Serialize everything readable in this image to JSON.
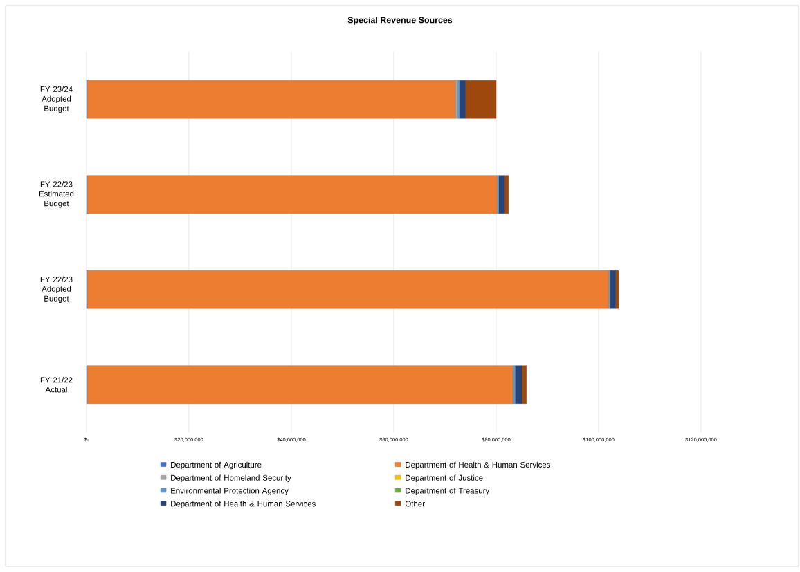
{
  "chart_data": {
    "type": "bar",
    "orientation": "horizontal",
    "stacked": true,
    "title": "Special Revenue Sources",
    "categories": [
      "FY 23/24 Adopted Budget",
      "FY 22/23 Estimated Budget",
      "FY 22/23 Adopted Budget",
      "FY 21/22 Actual"
    ],
    "series": [
      {
        "name": "Department of Agriculture",
        "color": "#4472c4",
        "values": [
          100000,
          100000,
          100000,
          100000
        ]
      },
      {
        "name": "Department of Health & Human Services",
        "color": "#ed7d31",
        "values": [
          71900000,
          80000000,
          101800000,
          83100000
        ]
      },
      {
        "name": "Department of Homeland Security",
        "color": "#a5a5a5",
        "values": [
          500000,
          200000,
          200000,
          200000
        ]
      },
      {
        "name": "Department of Justice",
        "color": "#ffc000",
        "values": [
          0,
          0,
          0,
          0
        ]
      },
      {
        "name": "Environmental Protection Agency",
        "color": "#5b9bd5",
        "values": [
          300000,
          200000,
          200000,
          300000
        ]
      },
      {
        "name": "Department of Treasury",
        "color": "#70ad47",
        "values": [
          0,
          0,
          0,
          0
        ]
      },
      {
        "name": "Department of Health & Human Services",
        "color": "#264478",
        "values": [
          1200000,
          1100000,
          1000000,
          1300000
        ]
      },
      {
        "name": "Other",
        "color": "#9e480e",
        "values": [
          6000000,
          800000,
          600000,
          900000
        ]
      }
    ],
    "xlim": [
      0,
      120000000
    ],
    "xticks": [
      {
        "value": 0,
        "label": "$-"
      },
      {
        "value": 20000000,
        "label": "$20,000,000"
      },
      {
        "value": 40000000,
        "label": "$40,000,000"
      },
      {
        "value": 60000000,
        "label": "$60,000,000"
      },
      {
        "value": 80000000,
        "label": "$80,000,000"
      },
      {
        "value": 100000000,
        "label": "$100,000,000"
      },
      {
        "value": 120000000,
        "label": "$120,000,000"
      }
    ],
    "grid": "x",
    "legend": "bottom"
  }
}
